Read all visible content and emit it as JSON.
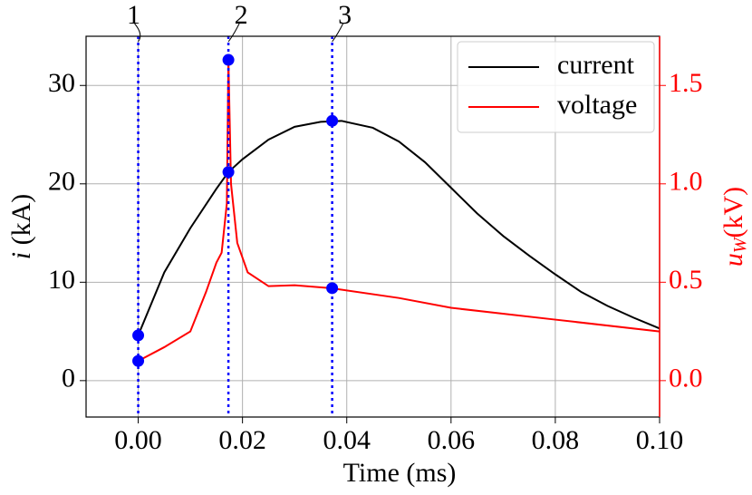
{
  "chart_data": {
    "type": "line",
    "xlabel": "Time (ms)",
    "ylabel": {
      "symbol": "i",
      "unit": "(kA)"
    },
    "y2label": {
      "symbol": "u",
      "subscript": "W",
      "unit": "(kV)"
    },
    "xlim": [
      -0.01,
      0.1
    ],
    "xticks": [
      {
        "value": 0,
        "label": "0.00"
      },
      {
        "value": 0.02,
        "label": "0.02"
      },
      {
        "value": 0.04,
        "label": "0.04"
      },
      {
        "value": 0.06,
        "label": "0.06"
      },
      {
        "value": 0.08,
        "label": "0.08"
      },
      {
        "value": 0.1,
        "label": "0.10"
      }
    ],
    "ylim": [
      -3.7,
      35
    ],
    "yticks": [
      0,
      10,
      20,
      30
    ],
    "y2lim": [
      -0.185,
      1.75
    ],
    "y2ticks": [
      {
        "value": 0,
        "label": "0.0"
      },
      {
        "value": 0.5,
        "label": "0.5"
      },
      {
        "value": 1,
        "label": "1.0"
      },
      {
        "value": 1.5,
        "label": "1.5"
      }
    ],
    "grid": true,
    "legend": "upper right",
    "series": [
      {
        "name": "current",
        "color": "#000000",
        "x": [
          0,
          0.005,
          0.01,
          0.015,
          0.0173,
          0.02,
          0.025,
          0.03,
          0.035,
          0.039,
          0.045,
          0.05,
          0.055,
          0.06,
          0.065,
          0.07,
          0.075,
          0.08,
          0.085,
          0.09,
          0.095,
          0.1
        ],
        "values": [
          4.6,
          11,
          15.5,
          19.5,
          21.2,
          22.5,
          24.5,
          25.8,
          26.3,
          26.4,
          25.7,
          24.3,
          22.2,
          19.6,
          17.0,
          14.7,
          12.7,
          10.8,
          9.0,
          7.6,
          6.4,
          5.3
        ]
      },
      {
        "name": "voltage",
        "color": "#ff0000",
        "axis": "y2",
        "x": [
          0,
          0.005,
          0.01,
          0.013,
          0.015,
          0.016,
          0.017,
          0.0173,
          0.0178,
          0.019,
          0.021,
          0.025,
          0.03,
          0.037,
          0.05,
          0.06,
          0.08,
          0.1
        ],
        "values": [
          0.1,
          0.17,
          0.25,
          0.45,
          0.6,
          0.65,
          0.9,
          1.63,
          1.0,
          0.7,
          0.55,
          0.48,
          0.485,
          0.47,
          0.42,
          0.37,
          0.31,
          0.25
        ]
      }
    ],
    "markers": {
      "color": "#0000ff",
      "labels": [
        "1",
        "2",
        "3"
      ],
      "x": [
        0,
        0.0173,
        0.0372
      ],
      "current": [
        4.6,
        21.2,
        26.4
      ],
      "voltage": [
        0.1,
        1.63,
        0.47
      ]
    }
  }
}
